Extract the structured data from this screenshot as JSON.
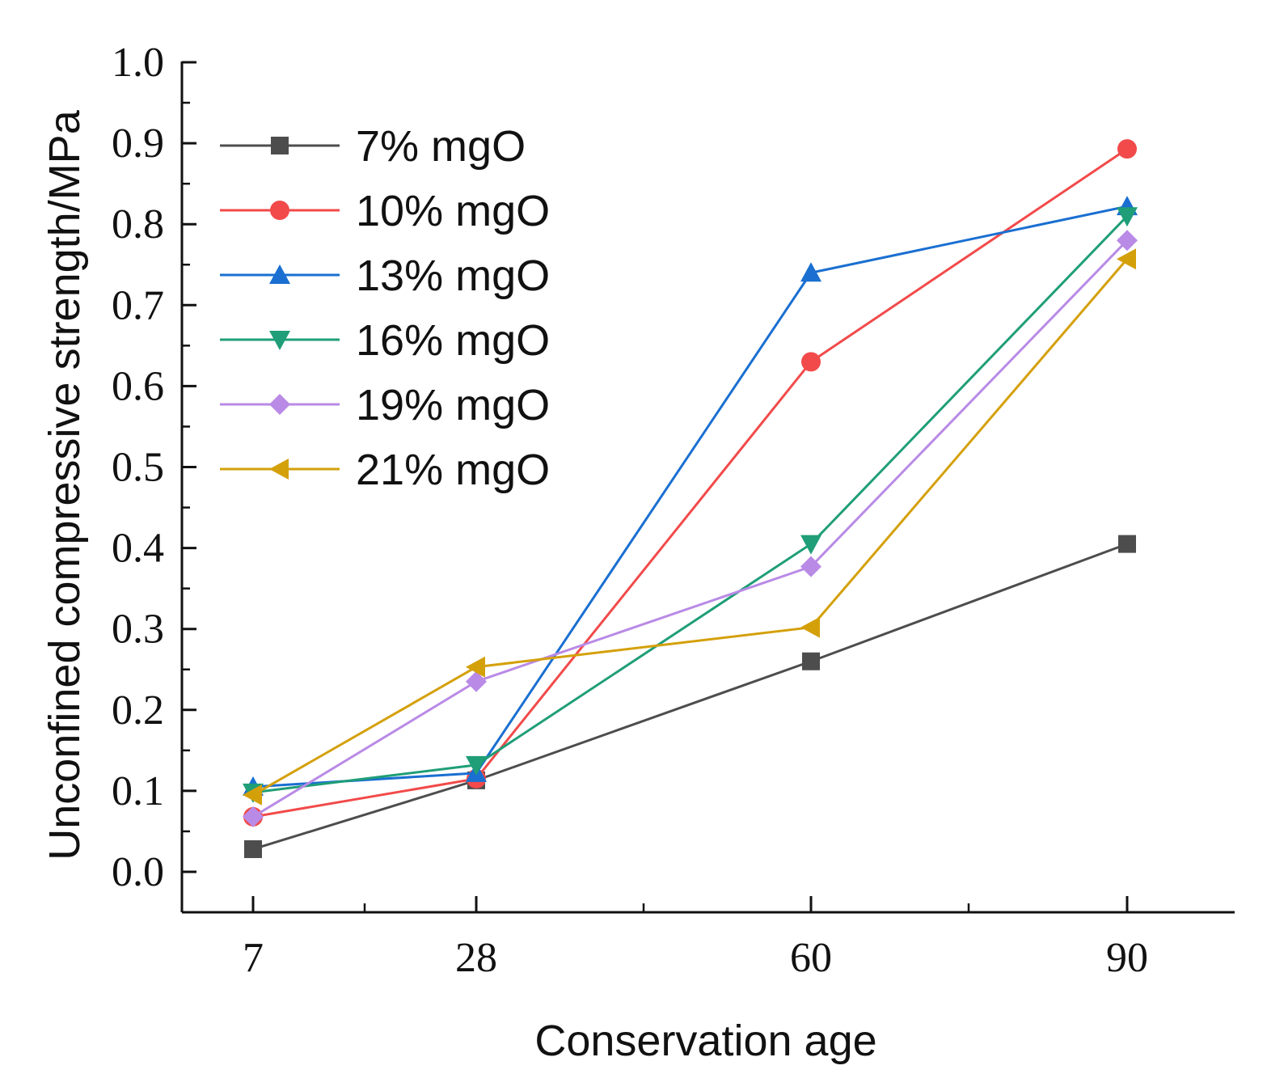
{
  "chart_data": {
    "type": "line",
    "title": "",
    "xlabel": "Conservation age",
    "ylabel": "Unconfined compressive strength/MPa",
    "categories": [
      "7",
      "28",
      "60",
      "90"
    ],
    "x": [
      7,
      28,
      60,
      90
    ],
    "xlim": [
      0,
      100
    ],
    "ylim": [
      -0.05,
      1.0
    ],
    "yticks": [
      "0.0",
      "0.1",
      "0.2",
      "0.3",
      "0.4",
      "0.5",
      "0.6",
      "0.7",
      "0.8",
      "0.9",
      "1.0"
    ],
    "grid": false,
    "legend_position": "top-left",
    "series": [
      {
        "name": "7% mgO",
        "color": "#4d4d4d",
        "marker": "square",
        "values": [
          0.028,
          0.113,
          0.26,
          0.405
        ]
      },
      {
        "name": "10% mgO",
        "color": "#f24a4a",
        "marker": "circle",
        "values": [
          0.068,
          0.115,
          0.63,
          0.893
        ]
      },
      {
        "name": "13% mgO",
        "color": "#1a6fd1",
        "marker": "triangle-up",
        "values": [
          0.105,
          0.122,
          0.74,
          0.822
        ]
      },
      {
        "name": "16% mgO",
        "color": "#1f9e77",
        "marker": "triangle-down",
        "values": [
          0.098,
          0.132,
          0.405,
          0.81
        ]
      },
      {
        "name": "19% mgO",
        "color": "#b98ae6",
        "marker": "diamond",
        "values": [
          0.068,
          0.235,
          0.377,
          0.78
        ]
      },
      {
        "name": "21% mgO",
        "color": "#d4a00a",
        "marker": "triangle-left",
        "values": [
          0.095,
          0.253,
          0.302,
          0.757
        ]
      }
    ]
  }
}
